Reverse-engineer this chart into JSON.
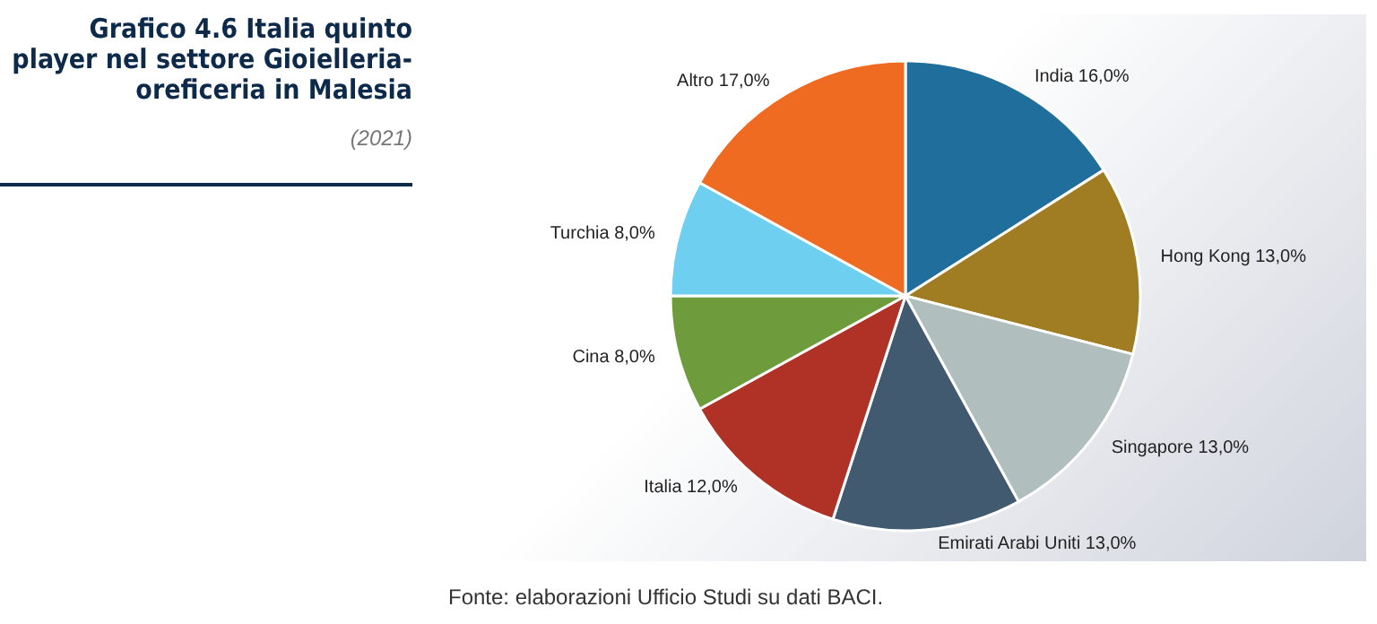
{
  "chart_data": {
    "type": "pie",
    "title": "Grafico 4.6 Italia quinto player nel settore Gioielleria-oreficeria in Malesia",
    "subtitle": "(2021)",
    "annotations": [
      "Fonte: elaborazioni Ufficio Studi su dati BACI."
    ],
    "categories": [
      "India",
      "Hong Kong",
      "Singapore",
      "Emirati Arabi Uniti",
      "Italia",
      "Cina",
      "Turchia",
      "Altro"
    ],
    "values": [
      16,
      13,
      13,
      13,
      12,
      8,
      8,
      17
    ],
    "value_labels": [
      "16,0%",
      "13,0%",
      "13,0%",
      "13,0%",
      "12,0%",
      "8,0%",
      "8,0%",
      "17,0%"
    ],
    "colors": [
      "#1f6e9c",
      "#a07c22",
      "#b0bfbd",
      "#425a70",
      "#b03226",
      "#6e9c3c",
      "#6fcff0",
      "#ef6b22"
    ],
    "legend": false
  }
}
